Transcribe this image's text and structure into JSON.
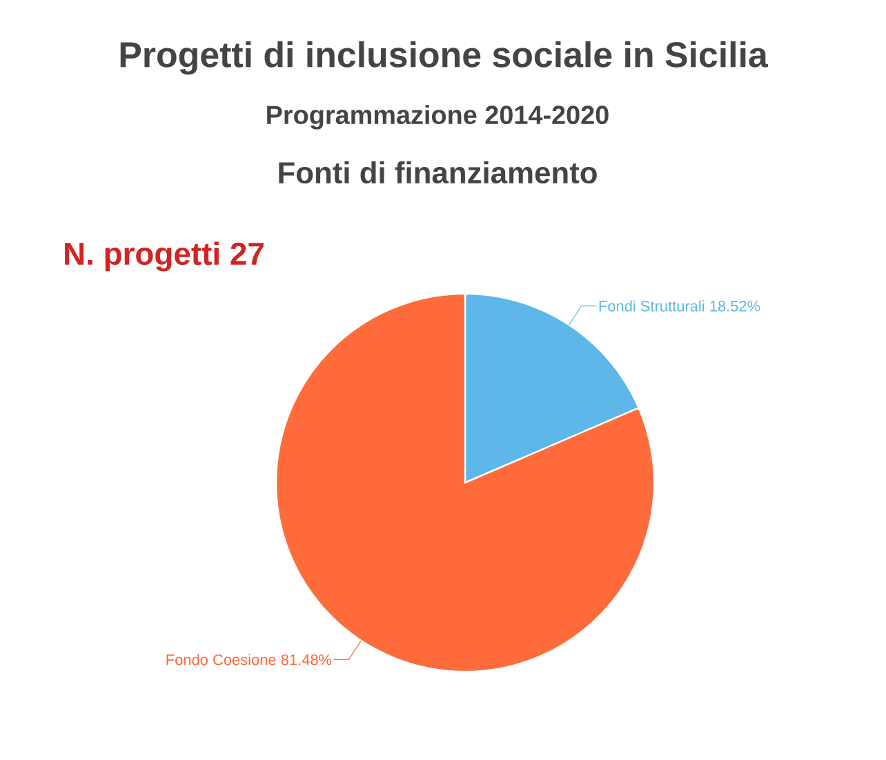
{
  "chart_data": {
    "type": "pie",
    "title": "Progetti di inclusione sociale in Sicilia",
    "subtitle": "Programmazione 2014-2020",
    "annotations": [
      "Fonti di finanziamento",
      "N. progetti 27"
    ],
    "categories": [
      "Fondi Strutturali",
      "Fondo Coesione"
    ],
    "values": [
      18.52,
      81.48
    ],
    "colors": [
      "#5db7e8",
      "#ff6b3a"
    ],
    "value_labels": [
      "18.52%",
      "81.48%"
    ]
  }
}
